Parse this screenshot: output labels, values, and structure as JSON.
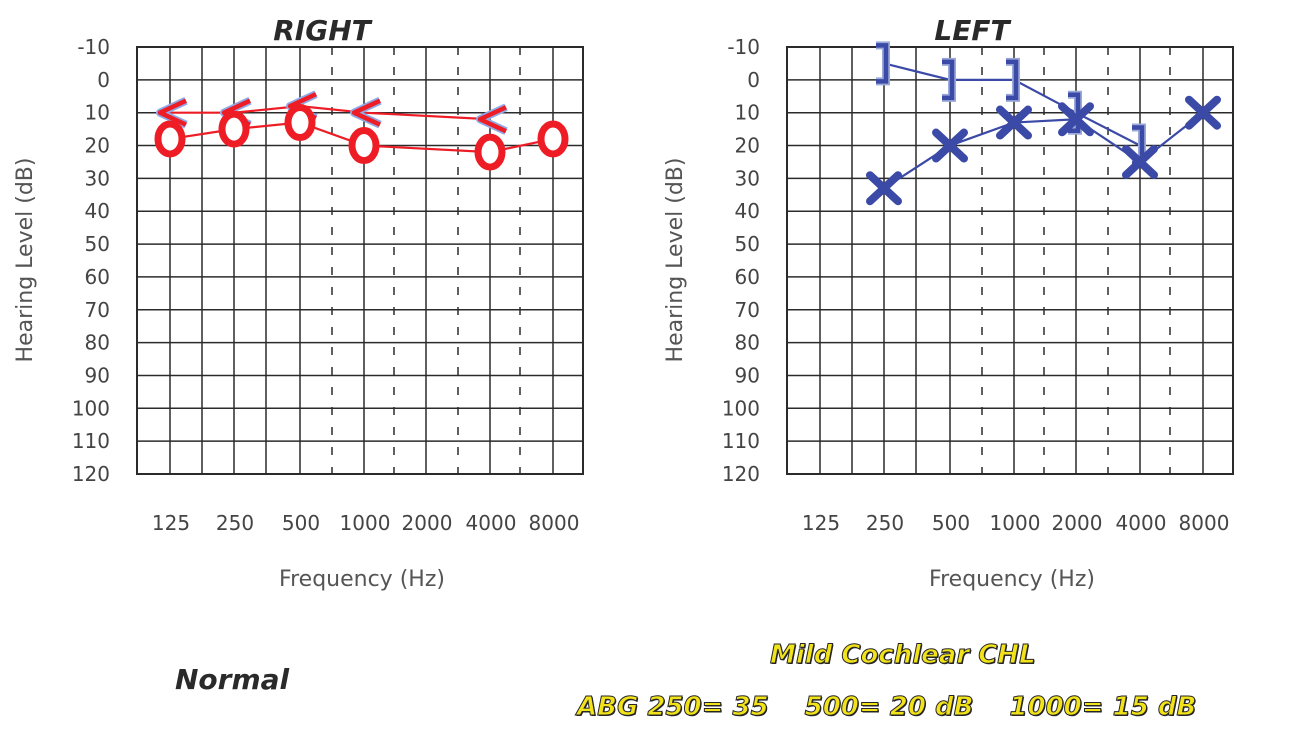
{
  "colors": {
    "right_ear": "#ee1c25",
    "left_ear": "#3b4aa6",
    "grid": "#2b2b2b",
    "caption_fill": "#f1e21a"
  },
  "chart_data": [
    {
      "type": "line",
      "title": "RIGHT",
      "xlabel": "Frequency (Hz)",
      "ylabel": "Hearing Level (dB)",
      "x_ticks": [
        "125",
        "250",
        "500",
        "1000",
        "2000",
        "4000",
        "8000"
      ],
      "y_ticks": [
        -10,
        0,
        10,
        20,
        30,
        40,
        50,
        60,
        70,
        80,
        90,
        100,
        110,
        120
      ],
      "ylim": [
        -10,
        120
      ],
      "y_inverted": true,
      "grid": true,
      "series": [
        {
          "marker": "<",
          "color": "#ee1c25",
          "x": [
            "125",
            "250",
            "500",
            "1000",
            "4000"
          ],
          "y": [
            10,
            10,
            8,
            10,
            12
          ]
        },
        {
          "marker": "O",
          "color": "#ee1c25",
          "x": [
            "125",
            "250",
            "500",
            "1000",
            "4000",
            "8000"
          ],
          "y": [
            18,
            15,
            13,
            20,
            22,
            18
          ]
        }
      ]
    },
    {
      "type": "line",
      "title": "LEFT",
      "xlabel": "Frequency (Hz)",
      "ylabel": "Hearing Level (dB)",
      "x_ticks": [
        "125",
        "250",
        "500",
        "1000",
        "2000",
        "4000",
        "8000"
      ],
      "y_ticks": [
        -10,
        0,
        10,
        20,
        30,
        40,
        50,
        60,
        70,
        80,
        90,
        100,
        110,
        120
      ],
      "ylim": [
        -10,
        120
      ],
      "y_inverted": true,
      "grid": true,
      "series": [
        {
          "marker": "]",
          "color": "#3b4aa6",
          "x": [
            "250",
            "500",
            "1000",
            "2000",
            "4000"
          ],
          "y": [
            -5,
            0,
            0,
            10,
            20
          ]
        },
        {
          "marker": "X",
          "color": "#3b4aa6",
          "x": [
            "250",
            "500",
            "1000",
            "2000",
            "4000",
            "8000"
          ],
          "y": [
            33,
            20,
            13,
            12,
            25,
            10
          ]
        }
      ]
    }
  ],
  "captions": {
    "normal": "Normal",
    "diagnosis": "Mild Cochlear CHL",
    "abg_250": "ABG 250= 35",
    "abg_500": "500= 20 dB",
    "abg_1000": "1000= 15 dB"
  }
}
